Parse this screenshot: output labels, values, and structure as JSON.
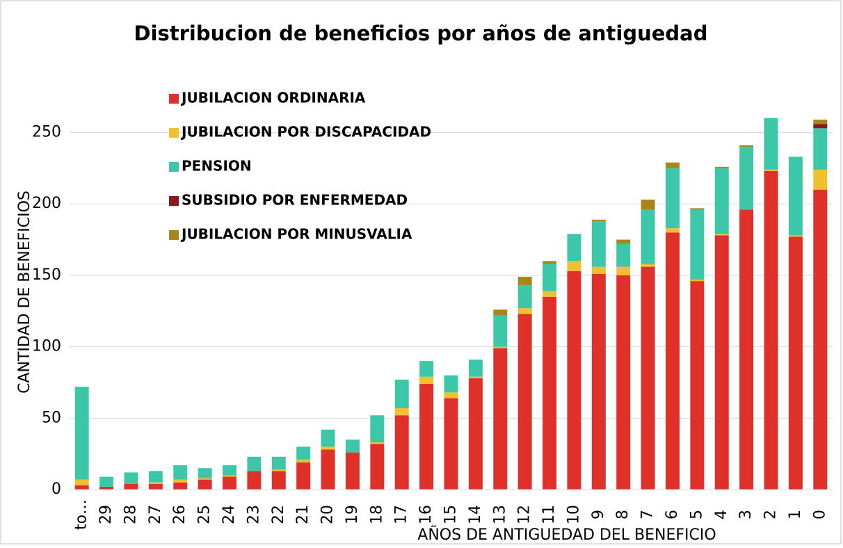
{
  "chart_data": {
    "type": "stacked_bar",
    "title": "Distribucion de beneficios por años de antiguedad",
    "x_label": "AÑOS DE ANTIGUEDAD DEL BENEFICIO",
    "y_label": "CANTIDAD DE BENEFICIOS",
    "categories": [
      "to…",
      "29",
      "28",
      "27",
      "26",
      "25",
      "24",
      "23",
      "22",
      "21",
      "20",
      "19",
      "18",
      "17",
      "16",
      "15",
      "14",
      "13",
      "12",
      "11",
      "10",
      "9",
      "8",
      "7",
      "6",
      "5",
      "4",
      "3",
      "2",
      "1",
      "0"
    ],
    "series": [
      {
        "name": "JUBILACION ORDINARIA",
        "color": "#e0302a",
        "values": [
          3,
          2,
          4,
          4,
          5,
          7,
          9,
          13,
          13,
          19,
          28,
          26,
          32,
          52,
          74,
          64,
          78,
          99,
          123,
          135,
          153,
          151,
          150,
          156,
          180,
          146,
          178,
          196,
          223,
          177,
          210
        ]
      },
      {
        "name": "JUBILACION POR DISCAPACIDAD",
        "color": "#f0c030",
        "values": [
          4,
          0,
          0,
          1,
          2,
          1,
          1,
          0,
          1,
          2,
          2,
          0,
          1,
          5,
          5,
          4,
          1,
          1,
          4,
          4,
          7,
          5,
          6,
          2,
          3,
          1,
          1,
          0,
          1,
          1,
          14
        ]
      },
      {
        "name": "PENSION",
        "color": "#3cc8a8",
        "values": [
          65,
          7,
          8,
          8,
          10,
          7,
          7,
          10,
          9,
          9,
          12,
          9,
          19,
          20,
          11,
          12,
          12,
          22,
          16,
          19,
          19,
          32,
          16,
          38,
          42,
          49,
          46,
          44,
          36,
          55,
          29
        ]
      },
      {
        "name": "SUBSIDIO POR ENFERMEDAD",
        "color": "#8b1a1a",
        "values": [
          0,
          0,
          0,
          0,
          0,
          0,
          0,
          0,
          0,
          0,
          0,
          0,
          0,
          0,
          0,
          0,
          0,
          0,
          0,
          0,
          0,
          0,
          0,
          0,
          0,
          0,
          0,
          0,
          0,
          0,
          3
        ]
      },
      {
        "name": "JUBILACION POR MINUSVALIA",
        "color": "#a8861a",
        "values": [
          0,
          0,
          0,
          0,
          0,
          0,
          0,
          0,
          0,
          0,
          0,
          0,
          0,
          0,
          0,
          0,
          0,
          4,
          6,
          2,
          0,
          1,
          3,
          7,
          4,
          1,
          1,
          1,
          0,
          0,
          3
        ]
      }
    ],
    "ylim": [
      0,
      260
    ],
    "yticks": [
      0,
      50,
      100,
      150,
      200,
      250
    ],
    "grid": true,
    "legend": "top-left"
  }
}
